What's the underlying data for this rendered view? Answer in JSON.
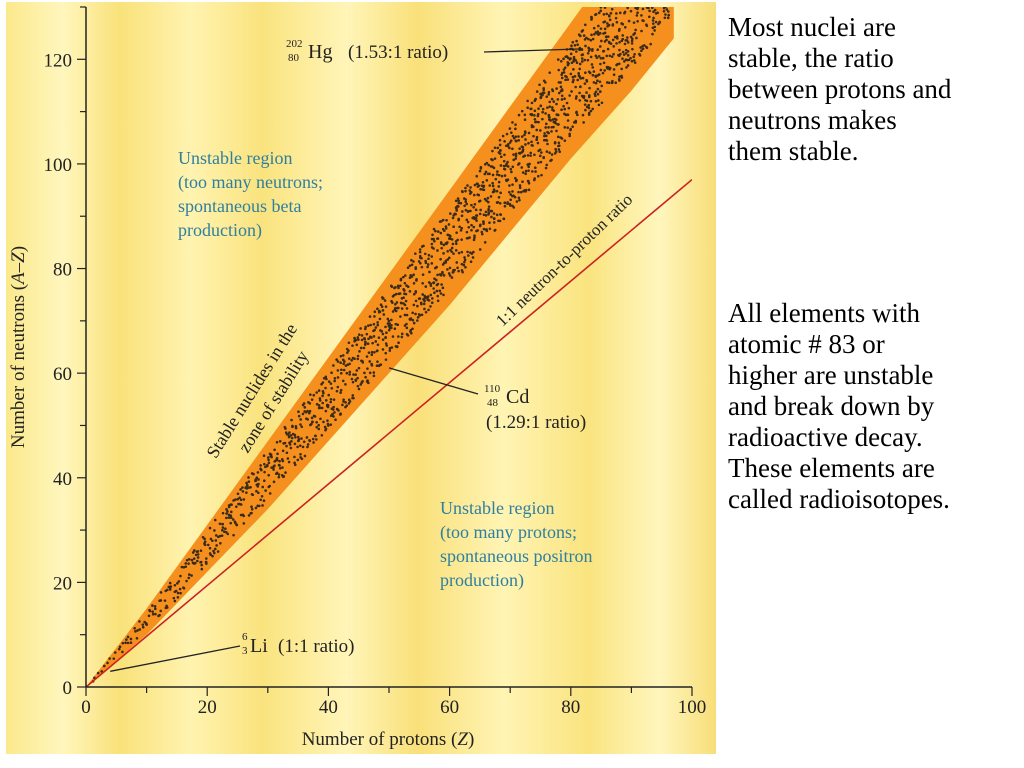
{
  "notes": {
    "stability_ratio": "Most nuclei are\nstable, the ratio\nbetween protons and\nneutrons makes\nthem stable.",
    "radioisotopes": "All elements with\natomic # 83 or\nhigher are unstable\nand break down by\nradioactive decay.\nThese elements are\ncalled radioisotopes."
  },
  "colors": {
    "background": "#fbe98c",
    "background_light": "#fff7c4",
    "band": "#f5901e",
    "dots": "#3a2a1a",
    "ratio_line": "#cc2222",
    "region_text": "#2f7fa0",
    "axis": "#222222"
  },
  "chart_data": {
    "type": "scatter",
    "xlabel_text": "Number of protons (",
    "xlabel_var": "Z",
    "xlabel_close": ")",
    "ylabel_text": "Number of neutrons (",
    "ylabel_var": "A–Z",
    "ylabel_close": ")",
    "xlim": [
      0,
      100
    ],
    "ylim": [
      0,
      130
    ],
    "xticks": [
      0,
      20,
      40,
      60,
      80,
      100
    ],
    "yticks": [
      0,
      20,
      40,
      60,
      80,
      100,
      120
    ],
    "xtick_labels": [
      "0",
      "20",
      "40",
      "60",
      "80",
      "100"
    ],
    "ytick_labels": [
      "0",
      "20",
      "40",
      "60",
      "80",
      "100",
      "120"
    ],
    "grid": false,
    "stability_band": {
      "x": [
        0,
        10,
        20,
        30,
        40,
        50,
        60,
        70,
        80,
        90,
        97
      ],
      "y_upper": [
        0,
        15,
        31,
        47,
        63,
        79,
        95,
        111,
        127,
        143,
        154
      ],
      "y_lower": [
        0,
        10,
        22,
        34,
        47,
        60,
        73,
        87,
        101,
        114,
        124
      ]
    },
    "ratio_line": {
      "x": [
        0,
        100
      ],
      "y": [
        0,
        97
      ],
      "label": "1:1 neutron-to-proton ratio"
    },
    "annotations": [
      {
        "id": "hg",
        "mass": "202",
        "atomic": "80",
        "symbol": "Hg",
        "ratio": "(1.53:1 ratio)",
        "point": [
          82,
          122
        ]
      },
      {
        "id": "cd",
        "mass": "110",
        "atomic": "48",
        "symbol": "Cd",
        "ratio": "(1.29:1 ratio)",
        "point": [
          50,
          61
        ]
      },
      {
        "id": "li",
        "mass": "6",
        "atomic": "3",
        "symbol": "Li",
        "ratio": "(1:1 ratio)",
        "point": [
          4,
          3
        ]
      }
    ],
    "band_label": [
      "Stable nuclides in the",
      "zone of stability"
    ],
    "regions": [
      {
        "id": "neutrons",
        "lines": [
          "Unstable region",
          "(too many neutrons;",
          "spontaneous beta",
          "production)"
        ]
      },
      {
        "id": "protons",
        "lines": [
          "Unstable region",
          "(too many protons;",
          "spontaneous positron",
          "production)"
        ]
      }
    ]
  }
}
